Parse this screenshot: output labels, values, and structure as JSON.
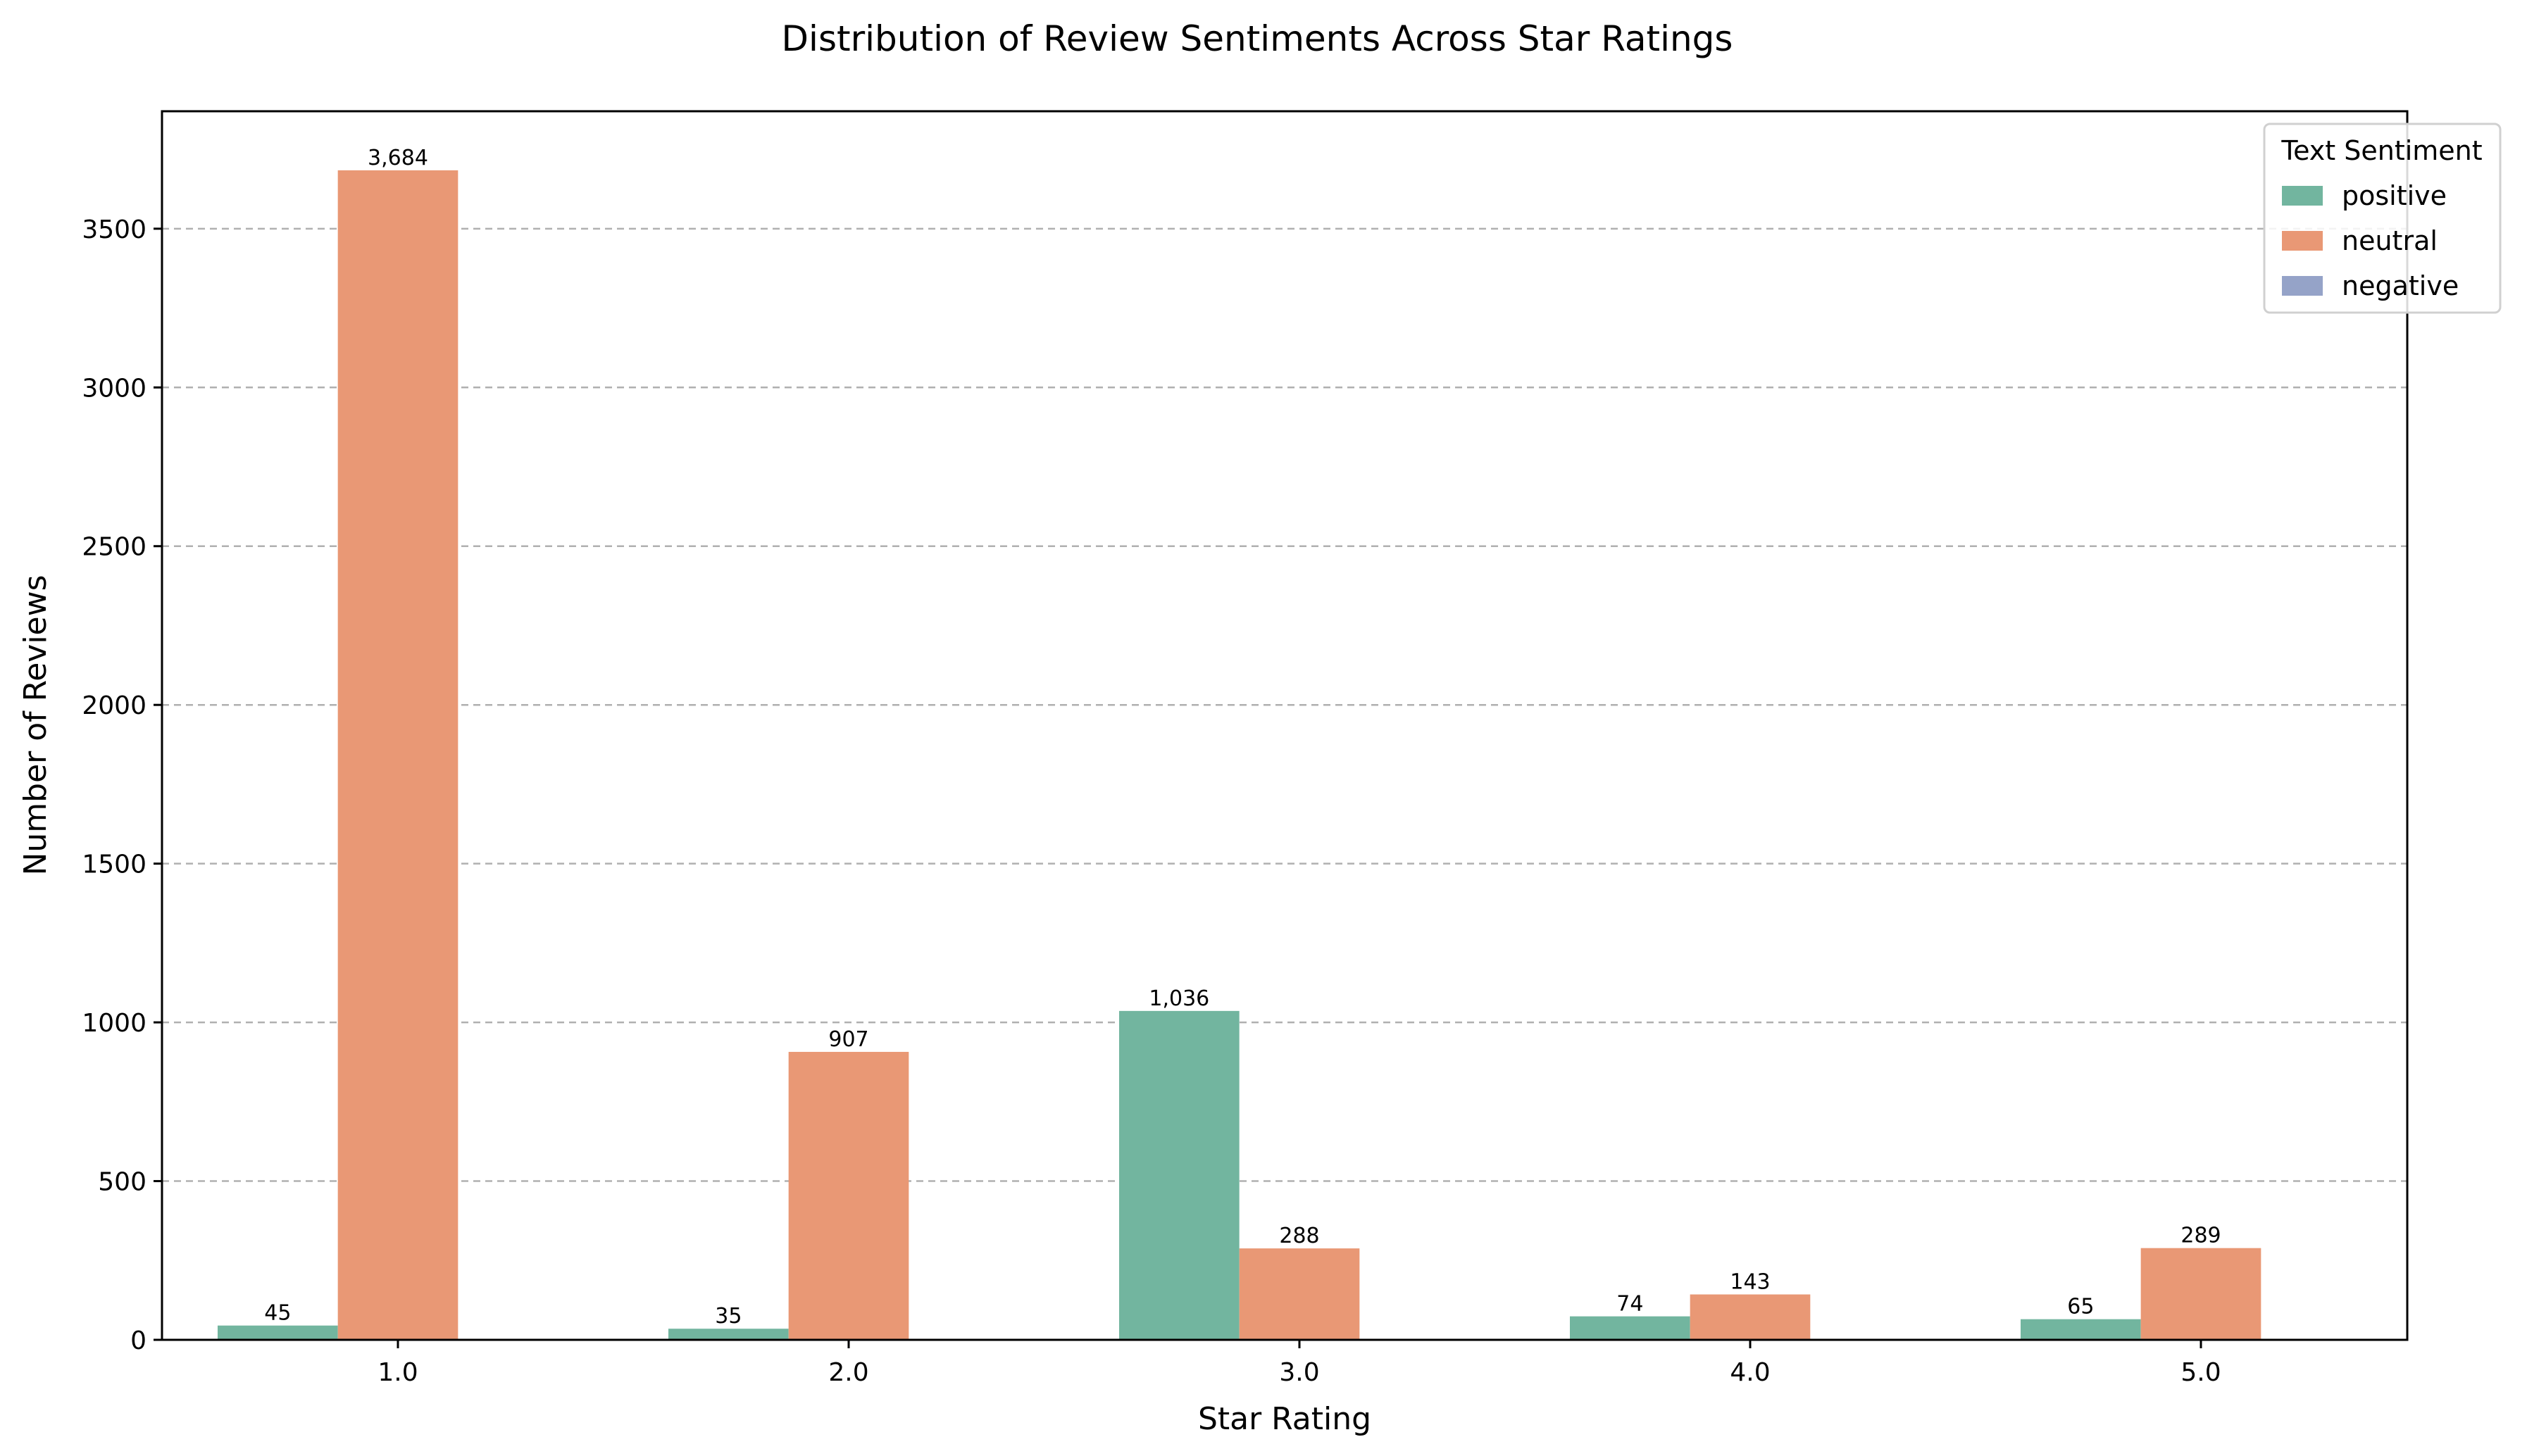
{
  "chart_data": {
    "type": "bar",
    "title": "Distribution of Review Sentiments Across Star Ratings",
    "xlabel": "Star Rating",
    "ylabel": "Number of Reviews",
    "categories": [
      "1.0",
      "2.0",
      "3.0",
      "4.0",
      "5.0"
    ],
    "series": [
      {
        "name": "positive",
        "color": "#72b59f",
        "values": [
          45,
          35,
          1036,
          74,
          65
        ],
        "labels": [
          "45",
          "35",
          "1,036",
          "74",
          "65"
        ]
      },
      {
        "name": "neutral",
        "color": "#e99875",
        "values": [
          3684,
          907,
          288,
          143,
          289
        ],
        "labels": [
          "3,684",
          "907",
          "288",
          "143",
          "289"
        ]
      },
      {
        "name": "negative",
        "color": "#95a3c8",
        "values": [
          0,
          0,
          0,
          0,
          0
        ],
        "labels": [
          "",
          "",
          "",
          "",
          ""
        ]
      }
    ],
    "ylim": [
      0,
      3870
    ],
    "yticks": [
      0,
      500,
      1000,
      1500,
      2000,
      2500,
      3000,
      3500
    ],
    "grid": "y-dashed",
    "legend": {
      "title": "Text Sentiment",
      "placement": "top-right"
    }
  }
}
